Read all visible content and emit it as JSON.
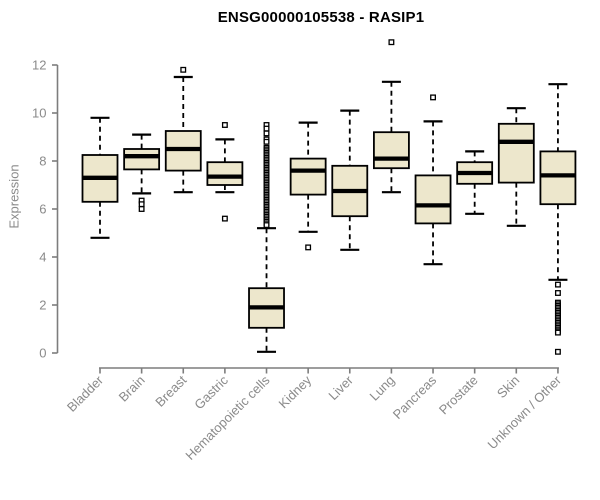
{
  "chart_data": {
    "type": "boxplot",
    "title": "ENSG00000105538 - RASIP1",
    "xlabel": "",
    "ylabel": "Expression",
    "ylim": [
      0,
      12
    ],
    "yticks": [
      0,
      2,
      4,
      6,
      8,
      10,
      12
    ],
    "grid": false,
    "legend": "none",
    "categories": [
      "Bladder",
      "Brain",
      "Breast",
      "Gastric",
      "Hematopoietic cells",
      "Kidney",
      "Liver",
      "Lung",
      "Pancreas",
      "Prostate",
      "Skin",
      "Unknown / Other"
    ],
    "series": [
      {
        "category": "Bladder",
        "whisker_low": 4.8,
        "q1": 6.3,
        "median": 7.3,
        "q3": 8.25,
        "whisker_high": 9.8,
        "outliers": []
      },
      {
        "category": "Brain",
        "whisker_low": 6.65,
        "q1": 7.65,
        "median": 8.2,
        "q3": 8.5,
        "whisker_high": 9.1,
        "outliers": [
          6.35,
          6.2,
          6.0
        ]
      },
      {
        "category": "Breast",
        "whisker_low": 6.7,
        "q1": 7.6,
        "median": 8.5,
        "q3": 9.25,
        "whisker_high": 11.5,
        "outliers": [
          11.8
        ]
      },
      {
        "category": "Gastric",
        "whisker_low": 6.7,
        "q1": 7.0,
        "median": 7.35,
        "q3": 7.95,
        "whisker_high": 8.9,
        "outliers": [
          9.5,
          5.6
        ]
      },
      {
        "category": "Hematopoietic cells",
        "whisker_low": 0.05,
        "q1": 1.05,
        "median": 1.9,
        "q3": 2.7,
        "whisker_high": 5.2,
        "outliers": [
          9.5,
          9.35,
          9.15,
          8.9,
          8.8,
          8.55,
          8.48,
          8.41,
          8.34,
          8.27,
          8.2,
          8.13,
          8.06,
          7.99,
          7.92,
          7.85,
          7.78,
          7.71,
          7.64,
          7.57,
          7.5,
          7.43,
          7.36,
          7.29,
          7.22,
          7.15,
          7.08,
          7.01,
          6.94,
          6.87,
          6.8,
          6.73,
          6.66,
          6.59,
          6.52,
          6.45,
          6.38,
          6.31,
          6.24,
          6.17,
          6.1,
          6.03,
          5.96,
          5.89,
          5.82,
          5.75,
          5.68,
          5.61,
          5.54,
          5.47,
          5.4,
          5.33
        ]
      },
      {
        "category": "Kidney",
        "whisker_low": 5.05,
        "q1": 6.6,
        "median": 7.6,
        "q3": 8.1,
        "whisker_high": 9.6,
        "outliers": [
          4.4
        ]
      },
      {
        "category": "Liver",
        "whisker_low": 4.3,
        "q1": 5.7,
        "median": 6.75,
        "q3": 7.8,
        "whisker_high": 10.1,
        "outliers": []
      },
      {
        "category": "Lung",
        "whisker_low": 6.7,
        "q1": 7.7,
        "median": 8.1,
        "q3": 9.2,
        "whisker_high": 11.3,
        "outliers": [
          12.95
        ]
      },
      {
        "category": "Pancreas",
        "whisker_low": 3.7,
        "q1": 5.4,
        "median": 6.15,
        "q3": 7.4,
        "whisker_high": 9.65,
        "outliers": [
          10.65
        ]
      },
      {
        "category": "Prostate",
        "whisker_low": 5.8,
        "q1": 7.05,
        "median": 7.5,
        "q3": 7.95,
        "whisker_high": 8.4,
        "outliers": []
      },
      {
        "category": "Skin",
        "whisker_low": 5.3,
        "q1": 7.1,
        "median": 8.8,
        "q3": 9.55,
        "whisker_high": 10.2,
        "outliers": []
      },
      {
        "category": "Unknown / Other",
        "whisker_low": 3.05,
        "q1": 6.2,
        "median": 7.4,
        "q3": 8.4,
        "whisker_high": 11.2,
        "outliers": [
          2.85,
          2.5,
          2.1,
          2.03,
          1.96,
          1.89,
          1.82,
          1.75,
          1.68,
          1.61,
          1.54,
          1.47,
          1.4,
          1.33,
          1.26,
          1.19,
          1.12,
          1.05,
          0.98,
          0.91,
          0.85,
          0.05
        ]
      }
    ],
    "colors": {
      "background": "#ffffff",
      "box_fill": "#ede7cc",
      "box_border": "#000000",
      "median": "#000000",
      "whisker": "#000000",
      "outlier_stroke": "#000000",
      "outlier_fill": "#ffffff",
      "axis": "#7d7d7d",
      "tick_label": "#8a8a8a",
      "title": "#000000"
    }
  }
}
